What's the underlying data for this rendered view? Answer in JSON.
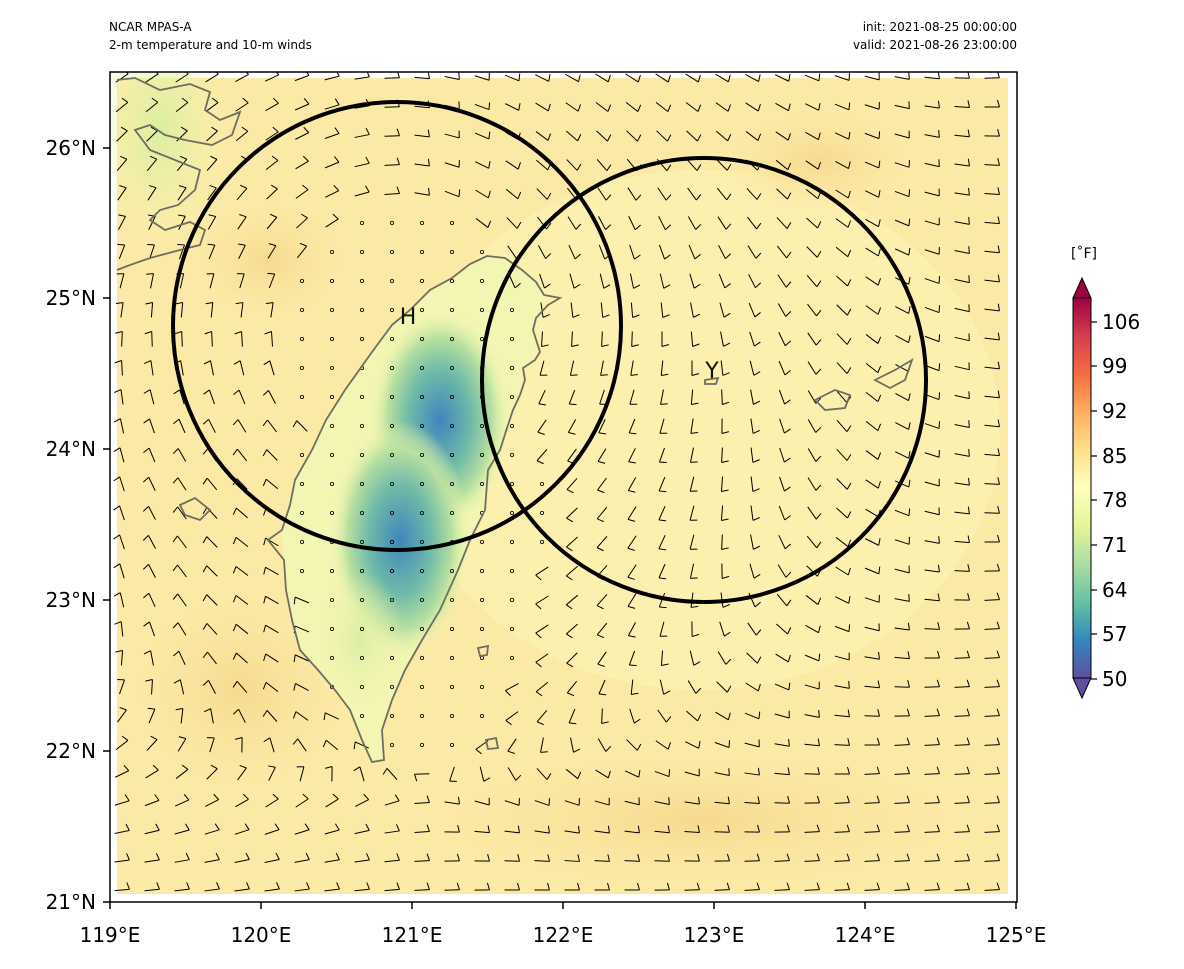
{
  "header": {
    "model": "NCAR MPAS-A",
    "field": "2-m temperature and 10-m winds",
    "init": "init: 2021-08-25 00:00:00",
    "valid": "valid: 2021-08-26 23:00:00"
  },
  "axes": {
    "lon_ticks": [
      "119°E",
      "120°E",
      "121°E",
      "122°E",
      "123°E",
      "124°E",
      "125°E"
    ],
    "lat_ticks": [
      "21°N",
      "22°N",
      "23°N",
      "24°N",
      "25°N",
      "26°N"
    ],
    "lon_range": [
      119,
      125
    ],
    "lat_range": [
      21,
      26.5
    ]
  },
  "colorbar": {
    "unit": "[˚F]",
    "ticks": [
      "50",
      "57",
      "64",
      "71",
      "78",
      "85",
      "92",
      "99",
      "106"
    ],
    "range": [
      50,
      111
    ],
    "colormap": "Spectral_r",
    "extend": "both"
  },
  "annotations": [
    {
      "label": "H",
      "lon": 120.97,
      "lat": 24.88,
      "circle_lon": 120.95,
      "circle_lat": 24.85,
      "radius_deg": 1.48
    },
    {
      "label": "Y",
      "lon": 122.98,
      "lat": 24.48,
      "circle_lon": 122.95,
      "circle_lat": 24.45,
      "radius_deg": 1.47
    }
  ],
  "colors": {
    "warm_background": "#fbe9a6",
    "cool_mountains": "#4b8fbd",
    "circle": "#000000",
    "coastline": "#6e6e60"
  }
}
